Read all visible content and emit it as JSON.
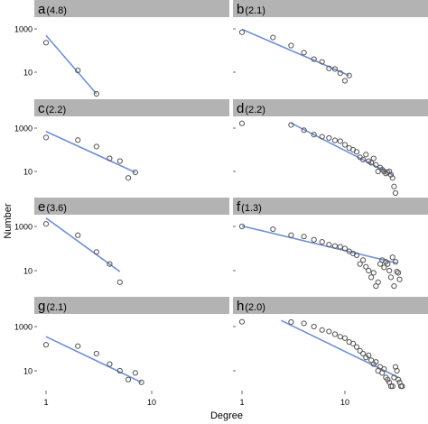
{
  "figure": {
    "ylabel": "Number",
    "xlabel": "Degree",
    "colors": {
      "strip": "#b3b3b3",
      "line": "#6e8fd8",
      "point": "#555555",
      "text": "#000000"
    }
  },
  "chart_data": [
    {
      "type": "scatter",
      "letter": "a",
      "exponent": "(4.8)",
      "xscale": "log",
      "yscale": "log",
      "xlim": [
        1,
        10
      ],
      "ylim": [
        1,
        2500
      ],
      "xticks": [
        "1",
        "10"
      ],
      "yticks": [
        "10",
        "1000"
      ],
      "points": [
        [
          1,
          230
        ],
        [
          2,
          12
        ],
        [
          3,
          1
        ]
      ],
      "fit": [
        [
          1,
          500
        ],
        [
          3,
          1
        ]
      ]
    },
    {
      "type": "scatter",
      "letter": "b",
      "exponent": "(2.1)",
      "xscale": "log",
      "yscale": "log",
      "xlim": [
        1,
        50
      ],
      "ylim": [
        1,
        2500
      ],
      "xticks": [
        "1",
        "10"
      ],
      "yticks": [
        "10",
        "1000"
      ],
      "points": [
        [
          1,
          700
        ],
        [
          2,
          400
        ],
        [
          3,
          170
        ],
        [
          4,
          80
        ],
        [
          5,
          40
        ],
        [
          6,
          30
        ],
        [
          7,
          15
        ],
        [
          8,
          14
        ],
        [
          9,
          9
        ],
        [
          10,
          4
        ],
        [
          11,
          7
        ]
      ],
      "fit": [
        [
          1,
          950
        ],
        [
          11,
          7
        ]
      ]
    },
    {
      "type": "scatter",
      "letter": "c",
      "exponent": "(2.2)",
      "xscale": "log",
      "yscale": "log",
      "xlim": [
        1,
        10
      ],
      "ylim": [
        1,
        2500
      ],
      "xticks": [
        "1",
        "10"
      ],
      "yticks": [
        "10",
        "1000"
      ],
      "points": [
        [
          1,
          370
        ],
        [
          2,
          280
        ],
        [
          3,
          140
        ],
        [
          4,
          40
        ],
        [
          5,
          30
        ],
        [
          6,
          5
        ],
        [
          7,
          9
        ]
      ],
      "fit": [
        [
          1,
          700
        ],
        [
          7,
          9
        ]
      ]
    },
    {
      "type": "scatter",
      "letter": "d",
      "exponent": "(2.2)",
      "xscale": "log",
      "yscale": "log",
      "xlim": [
        1,
        50
      ],
      "ylim": [
        1,
        2500
      ],
      "xticks": [
        "1",
        "10"
      ],
      "yticks": [
        "10",
        "1000"
      ],
      "points": [
        [
          1,
          1650
        ],
        [
          3,
          1400
        ],
        [
          4,
          800
        ],
        [
          5,
          500
        ],
        [
          6,
          400
        ],
        [
          7,
          350
        ],
        [
          8,
          270
        ],
        [
          9,
          250
        ],
        [
          10,
          170
        ],
        [
          11,
          120
        ],
        [
          12,
          100
        ],
        [
          13,
          80
        ],
        [
          14,
          45
        ],
        [
          15,
          35
        ],
        [
          16,
          60
        ],
        [
          17,
          30
        ],
        [
          18,
          25
        ],
        [
          19,
          40
        ],
        [
          20,
          20
        ],
        [
          21,
          10
        ],
        [
          22,
          15
        ],
        [
          23,
          12
        ],
        [
          24,
          10
        ],
        [
          25,
          8
        ],
        [
          26,
          9
        ],
        [
          27,
          10
        ],
        [
          28,
          7
        ],
        [
          29,
          5
        ],
        [
          30,
          2
        ],
        [
          31,
          1
        ]
      ],
      "fit": [
        [
          3,
          1700
        ],
        [
          29,
          7
        ]
      ]
    },
    {
      "type": "scatter",
      "letter": "e",
      "exponent": "(3.6)",
      "xscale": "log",
      "yscale": "log",
      "xlim": [
        1,
        10
      ],
      "ylim": [
        1,
        2500
      ],
      "xticks": [
        "1",
        "10"
      ],
      "yticks": [
        "10",
        "1000"
      ],
      "points": [
        [
          1,
          1300
        ],
        [
          2,
          400
        ],
        [
          3,
          70
        ],
        [
          4,
          20
        ],
        [
          5,
          3
        ]
      ],
      "fit": [
        [
          1,
          2400
        ],
        [
          5,
          9
        ]
      ]
    },
    {
      "type": "scatter",
      "letter": "f",
      "exponent": "(1.3)",
      "xscale": "log",
      "yscale": "log",
      "xlim": [
        1,
        50
      ],
      "ylim": [
        1,
        2500
      ],
      "xticks": [
        "1",
        "10"
      ],
      "yticks": [
        "10",
        "1000"
      ],
      "points": [
        [
          1,
          1000
        ],
        [
          2,
          750
        ],
        [
          3,
          400
        ],
        [
          4,
          350
        ],
        [
          5,
          250
        ],
        [
          6,
          200
        ],
        [
          7,
          150
        ],
        [
          8,
          130
        ],
        [
          9,
          120
        ],
        [
          10,
          100
        ],
        [
          11,
          75
        ],
        [
          12,
          60
        ],
        [
          13,
          50
        ],
        [
          14,
          20
        ],
        [
          15,
          30
        ],
        [
          16,
          15
        ],
        [
          17,
          10
        ],
        [
          18,
          5
        ],
        [
          19,
          8
        ],
        [
          20,
          2
        ],
        [
          21,
          3
        ],
        [
          22,
          20
        ],
        [
          23,
          30
        ],
        [
          24,
          14
        ],
        [
          25,
          25
        ],
        [
          26,
          20
        ],
        [
          27,
          10
        ],
        [
          28,
          5
        ],
        [
          29,
          40
        ],
        [
          30,
          2
        ],
        [
          31,
          25
        ],
        [
          32,
          9
        ],
        [
          33,
          8
        ],
        [
          34,
          4
        ]
      ],
      "fit": [
        [
          1,
          1050
        ],
        [
          32,
          22
        ]
      ]
    },
    {
      "type": "scatter",
      "letter": "g",
      "exponent": "(2.1)",
      "xscale": "log",
      "yscale": "log",
      "xlim": [
        1,
        10
      ],
      "ylim": [
        1,
        2500
      ],
      "xticks": [
        "1",
        "10"
      ],
      "yticks": [
        "10",
        "1000"
      ],
      "points": [
        [
          1,
          150
        ],
        [
          2,
          130
        ],
        [
          3,
          60
        ],
        [
          4,
          20
        ],
        [
          5,
          10
        ],
        [
          6,
          4
        ],
        [
          7,
          8
        ],
        [
          8,
          3
        ]
      ],
      "fit": [
        [
          1,
          350
        ],
        [
          8,
          3
        ]
      ]
    },
    {
      "type": "scatter",
      "letter": "h",
      "exponent": "(2.0)",
      "xscale": "log",
      "yscale": "log",
      "xlim": [
        1,
        50
      ],
      "ylim": [
        1,
        2500
      ],
      "xticks": [
        "1",
        "10"
      ],
      "yticks": [
        "10",
        "1000"
      ],
      "points": [
        [
          1,
          1650
        ],
        [
          3,
          1600
        ],
        [
          4,
          1400
        ],
        [
          5,
          1000
        ],
        [
          6,
          700
        ],
        [
          7,
          600
        ],
        [
          8,
          450
        ],
        [
          9,
          350
        ],
        [
          10,
          300
        ],
        [
          11,
          200
        ],
        [
          12,
          170
        ],
        [
          13,
          120
        ],
        [
          14,
          80
        ],
        [
          15,
          60
        ],
        [
          16,
          40
        ],
        [
          17,
          50
        ],
        [
          18,
          30
        ],
        [
          19,
          20
        ],
        [
          20,
          25
        ],
        [
          21,
          10
        ],
        [
          22,
          15
        ],
        [
          23,
          8
        ],
        [
          24,
          12
        ],
        [
          25,
          5
        ],
        [
          26,
          4
        ],
        [
          27,
          3
        ],
        [
          28,
          2
        ],
        [
          29,
          2
        ],
        [
          30,
          5
        ],
        [
          31,
          15
        ],
        [
          32,
          10
        ],
        [
          33,
          4
        ],
        [
          34,
          3
        ],
        [
          35,
          2
        ],
        [
          36,
          2
        ]
      ],
      "fit": [
        [
          2.4,
          1900
        ],
        [
          33,
          5
        ]
      ]
    }
  ]
}
